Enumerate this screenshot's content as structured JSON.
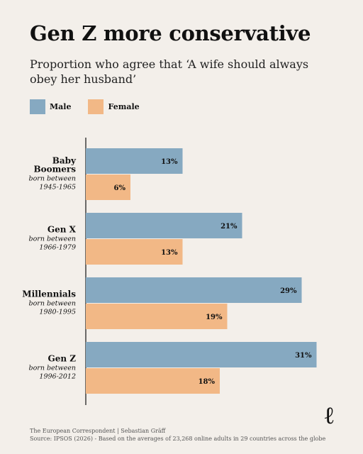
{
  "header": {
    "title": "Gen Z more conservative",
    "subtitle": "Proportion who agree that ‘A wife should always obey her husband’"
  },
  "legend": {
    "male_label": "Male",
    "female_label": "Female"
  },
  "colors": {
    "male": "#86a9c1",
    "female": "#f2b886",
    "background": "#f3efea"
  },
  "chart_data": {
    "type": "bar",
    "orientation": "horizontal",
    "title": "Gen Z more conservative",
    "subtitle": "Proportion who agree that ‘A wife should always obey her husband’",
    "categories": [
      "Baby Boomers",
      "Gen X",
      "Millennials",
      "Gen Z"
    ],
    "category_notes": [
      "born between 1945-1965",
      "born between 1966-1979",
      "born between 1980-1995",
      "born between 1996-2012"
    ],
    "series": [
      {
        "name": "Male",
        "values": [
          13,
          21,
          29,
          31
        ]
      },
      {
        "name": "Female",
        "values": [
          6,
          13,
          19,
          18
        ]
      }
    ],
    "value_labels": {
      "Male": [
        "13%",
        "21%",
        "29%",
        "31%"
      ],
      "Female": [
        "6%",
        "13%",
        "19%",
        "18%"
      ]
    },
    "xlim": [
      0,
      40
    ],
    "grid": false,
    "legend_position": "top-left"
  },
  "groups": [
    {
      "name_lines": [
        "Baby",
        "Boomers"
      ],
      "note_lines": [
        "born between",
        "1945-1965"
      ]
    },
    {
      "name_lines": [
        "Gen X"
      ],
      "note_lines": [
        "born between",
        "1966-1979"
      ]
    },
    {
      "name_lines": [
        "Millennials"
      ],
      "note_lines": [
        "born between",
        "1980-1995"
      ]
    },
    {
      "name_lines": [
        "Gen Z"
      ],
      "note_lines": [
        "born between",
        "1996-2012"
      ]
    }
  ],
  "footer": {
    "credit": "The European Correspondent | Sebastian Gräff",
    "source": "Source: IPSOS (2026) - Based on the averages of 23,268 online adults in 29 countries across the globe"
  },
  "brand": {
    "logo_glyph": "ℓ"
  }
}
